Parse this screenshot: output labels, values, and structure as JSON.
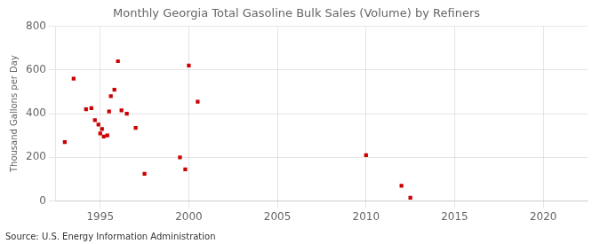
{
  "chart_data": {
    "type": "scatter",
    "title": "Monthly Georgia Total Gasoline Bulk Sales (Volume) by Refiners",
    "ylabel": "Thousand Gallons per Day",
    "annotation": "Source: U.S. Energy Information Administration",
    "color": "#cc0000",
    "marker": "square",
    "grid": true,
    "xlim": [
      1992.5,
      2022.5
    ],
    "ylim": [
      0,
      800
    ],
    "xticks": [
      1995,
      2000,
      2005,
      2010,
      2015,
      2020
    ],
    "yticks": [
      0,
      200,
      400,
      600,
      800
    ],
    "x": [
      1993.0,
      1993.5,
      1994.2,
      1994.5,
      1994.7,
      1994.9,
      1995.0,
      1995.1,
      1995.2,
      1995.4,
      1995.5,
      1995.6,
      1995.8,
      1996.0,
      1996.2,
      1996.5,
      1997.0,
      1997.5,
      1999.5,
      1999.8,
      2000.0,
      2000.5,
      2010.0,
      2012.0,
      2012.5
    ],
    "values": [
      270,
      560,
      420,
      425,
      370,
      350,
      310,
      330,
      295,
      300,
      410,
      480,
      510,
      640,
      415,
      400,
      335,
      125,
      200,
      145,
      620,
      455,
      210,
      70,
      15
    ]
  }
}
